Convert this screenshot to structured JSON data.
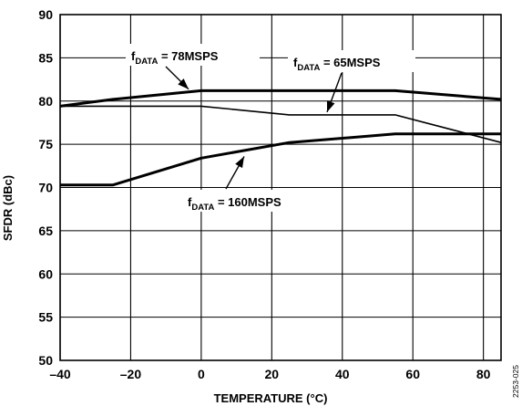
{
  "chart_data": {
    "type": "line",
    "xlabel": "TEMPERATURE (°C)",
    "ylabel": "SFDR (dBc)",
    "xlim": [
      -40,
      85
    ],
    "ylim": [
      50,
      90
    ],
    "x_ticks": [
      -40,
      -20,
      0,
      20,
      40,
      60,
      80
    ],
    "x_tick_labels": [
      "–40",
      "–20",
      "0",
      "20",
      "40",
      "60",
      "80"
    ],
    "y_ticks": [
      50,
      55,
      60,
      65,
      70,
      75,
      80,
      85,
      90
    ],
    "y_tick_labels": [
      "50",
      "55",
      "60",
      "65",
      "70",
      "75",
      "80",
      "85",
      "90"
    ],
    "grid": true,
    "series": [
      {
        "name": "fDATA = 78MSPS",
        "line_weight": "thick",
        "x": [
          -40,
          -25,
          0,
          25,
          55,
          85
        ],
        "y": [
          79.4,
          80.2,
          81.2,
          81.2,
          81.2,
          80.2
        ]
      },
      {
        "name": "fDATA = 65MSPS",
        "line_weight": "thin",
        "x": [
          -40,
          0,
          25,
          55,
          85
        ],
        "y": [
          79.4,
          79.4,
          78.4,
          78.4,
          75.2
        ]
      },
      {
        "name": "fDATA = 160MSPS",
        "line_weight": "thick",
        "x": [
          -40,
          -25,
          0,
          25,
          55,
          85
        ],
        "y": [
          70.3,
          70.3,
          73.4,
          75.2,
          76.2,
          76.2
        ]
      }
    ],
    "annotations": [
      {
        "prefix": "f",
        "sub": "DATA",
        "suffix": " = 78MSPS",
        "series": 0
      },
      {
        "prefix": "f",
        "sub": "DATA",
        "suffix": " = 65MSPS",
        "series": 1
      },
      {
        "prefix": "f",
        "sub": "DATA",
        "suffix": " = 160MSPS",
        "series": 2
      }
    ],
    "figure_id": "2253-025"
  }
}
